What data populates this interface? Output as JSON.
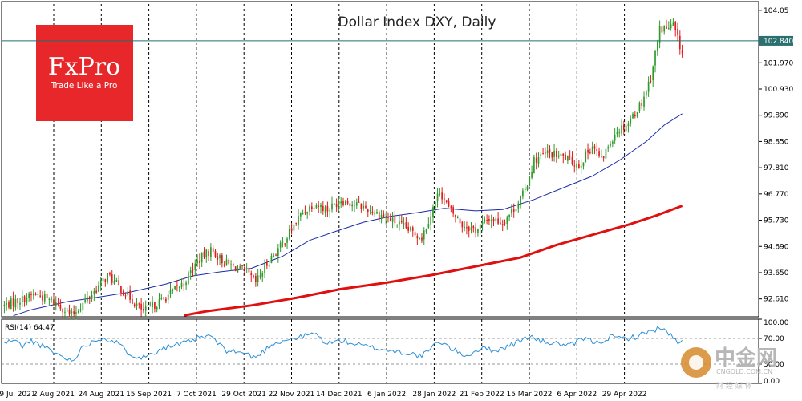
{
  "title": "Dollar Index DXY, Daily",
  "logo": {
    "brand": "FxPro",
    "tagline": "Trade Like a Pro",
    "color": "#e8272b"
  },
  "watermark": {
    "cn": "中金网",
    "en": "CNGOLD.COM.CN",
    "sub": "财 经 媒 体"
  },
  "colors": {
    "bull": "#2e9a2a",
    "bear": "#e21a1a",
    "ma_short": "#1a2ba8",
    "ma_long": "#e01010",
    "rsi": "#2b8fd6",
    "hline": "#1f6f6f",
    "price_label_bg": "#2b6f6f"
  },
  "chart_data": [
    {
      "type": "candlestick",
      "title": "Dollar Index DXY, Daily",
      "x_labels": [
        "9 Jul 2021",
        "2 Aug 2021",
        "24 Aug 2021",
        "15 Sep 2021",
        "7 Oct 2021",
        "29 Oct 2021",
        "22 Nov 2021",
        "14 Dec 2021",
        "6 Jan 2022",
        "28 Jan 2022",
        "21 Feb 2022",
        "15 Mar 2022",
        "6 Apr 2022",
        "29 Apr 2022"
      ],
      "vertical_gridlines_at": [
        "2 Aug 2021",
        "24 Aug 2021",
        "15 Sep 2021",
        "7 Oct 2021",
        "29 Oct 2021",
        "22 Nov 2021",
        "14 Dec 2021",
        "6 Jan 2022",
        "28 Jan 2022",
        "21 Feb 2022",
        "15 Mar 2022",
        "6 Apr 2022",
        "29 Apr 2022"
      ],
      "y_ticks": [
        "104.05",
        "102.840",
        "101.970",
        "100.930",
        "99.890",
        "98.850",
        "97.810",
        "96.770",
        "95.730",
        "94.690",
        "93.650",
        "92.610"
      ],
      "ylim": [
        91.9,
        104.3
      ],
      "current_price": 102.84,
      "current_price_label": "102.840",
      "close_path": [
        [
          0,
          92.35
        ],
        [
          14,
          92.8
        ],
        [
          24,
          92.4
        ],
        [
          30,
          91.95
        ],
        [
          40,
          92.9
        ],
        [
          46,
          93.55
        ],
        [
          56,
          92.65
        ],
        [
          62,
          92.1
        ],
        [
          70,
          92.55
        ],
        [
          80,
          93.25
        ],
        [
          86,
          94.1
        ],
        [
          92,
          94.55
        ],
        [
          98,
          94.05
        ],
        [
          108,
          93.65
        ],
        [
          112,
          93.25
        ],
        [
          118,
          94.15
        ],
        [
          124,
          94.8
        ],
        [
          132,
          95.95
        ],
        [
          138,
          96.4
        ],
        [
          144,
          96.15
        ],
        [
          150,
          96.55
        ],
        [
          160,
          96.25
        ],
        [
          170,
          95.85
        ],
        [
          180,
          95.35
        ],
        [
          186,
          95.05
        ],
        [
          194,
          96.9
        ],
        [
          198,
          96.2
        ],
        [
          204,
          95.55
        ],
        [
          210,
          95.35
        ],
        [
          216,
          95.8
        ],
        [
          222,
          95.65
        ],
        [
          228,
          96.3
        ],
        [
          232,
          96.9
        ],
        [
          236,
          98.1
        ],
        [
          242,
          98.4
        ],
        [
          250,
          98.2
        ],
        [
          256,
          97.9
        ],
        [
          262,
          98.7
        ],
        [
          266,
          98.1
        ],
        [
          272,
          99.2
        ],
        [
          278,
          99.6
        ],
        [
          284,
          100.4
        ],
        [
          288,
          101.4
        ],
        [
          292,
          103.3
        ],
        [
          296,
          103.35
        ],
        [
          298,
          103.45
        ],
        [
          300,
          102.9
        ],
        [
          302,
          102.35
        ]
      ],
      "ma_short": {
        "name": "MA short (blue)",
        "points": [
          [
            4,
            91.94
          ],
          [
            12,
            92.18
          ],
          [
            28,
            92.5
          ],
          [
            40,
            92.65
          ],
          [
            56,
            92.88
          ],
          [
            72,
            93.2
          ],
          [
            84,
            93.52
          ],
          [
            96,
            93.68
          ],
          [
            110,
            93.82
          ],
          [
            124,
            94.3
          ],
          [
            136,
            94.93
          ],
          [
            148,
            95.3
          ],
          [
            160,
            95.65
          ],
          [
            172,
            95.88
          ],
          [
            184,
            96.03
          ],
          [
            196,
            96.2
          ],
          [
            210,
            96.1
          ],
          [
            222,
            96.15
          ],
          [
            236,
            96.55
          ],
          [
            250,
            97.05
          ],
          [
            262,
            97.48
          ],
          [
            274,
            98.1
          ],
          [
            286,
            98.85
          ],
          [
            294,
            99.5
          ],
          [
            302,
            99.95
          ]
        ]
      },
      "ma_long": {
        "name": "MA long (red)",
        "points": [
          [
            80,
            91.95
          ],
          [
            90,
            92.12
          ],
          [
            110,
            92.35
          ],
          [
            130,
            92.65
          ],
          [
            150,
            93.0
          ],
          [
            170,
            93.25
          ],
          [
            190,
            93.55
          ],
          [
            210,
            93.9
          ],
          [
            230,
            94.25
          ],
          [
            246,
            94.75
          ],
          [
            262,
            95.15
          ],
          [
            278,
            95.55
          ],
          [
            290,
            95.9
          ],
          [
            302,
            96.3
          ]
        ]
      }
    },
    {
      "type": "line",
      "title": "RSI(14) 64.47",
      "series_name": "RSI(14)",
      "last_value": 64.47,
      "y_ticks": [
        "100.00",
        "70.00",
        "30.00",
        "0.00"
      ],
      "ylim": [
        0,
        100
      ],
      "reference_lines": [
        70,
        30
      ],
      "path": [
        [
          0,
          62
        ],
        [
          4,
          68
        ],
        [
          8,
          58
        ],
        [
          12,
          66
        ],
        [
          16,
          60
        ],
        [
          22,
          48
        ],
        [
          30,
          35
        ],
        [
          36,
          60
        ],
        [
          44,
          72
        ],
        [
          50,
          63
        ],
        [
          56,
          46
        ],
        [
          62,
          40
        ],
        [
          70,
          55
        ],
        [
          80,
          62
        ],
        [
          86,
          70
        ],
        [
          92,
          74
        ],
        [
          98,
          52
        ],
        [
          106,
          48
        ],
        [
          112,
          40
        ],
        [
          120,
          63
        ],
        [
          126,
          68
        ],
        [
          132,
          72
        ],
        [
          138,
          78
        ],
        [
          144,
          62
        ],
        [
          150,
          67
        ],
        [
          160,
          58
        ],
        [
          170,
          52
        ],
        [
          180,
          47
        ],
        [
          186,
          42
        ],
        [
          194,
          66
        ],
        [
          200,
          52
        ],
        [
          206,
          43
        ],
        [
          212,
          54
        ],
        [
          220,
          52
        ],
        [
          228,
          63
        ],
        [
          234,
          74
        ],
        [
          238,
          66
        ],
        [
          246,
          62
        ],
        [
          252,
          58
        ],
        [
          258,
          70
        ],
        [
          264,
          63
        ],
        [
          270,
          72
        ],
        [
          276,
          70
        ],
        [
          282,
          73
        ],
        [
          288,
          82
        ],
        [
          292,
          86
        ],
        [
          296,
          78
        ],
        [
          300,
          62
        ],
        [
          302,
          64.47
        ]
      ]
    }
  ]
}
